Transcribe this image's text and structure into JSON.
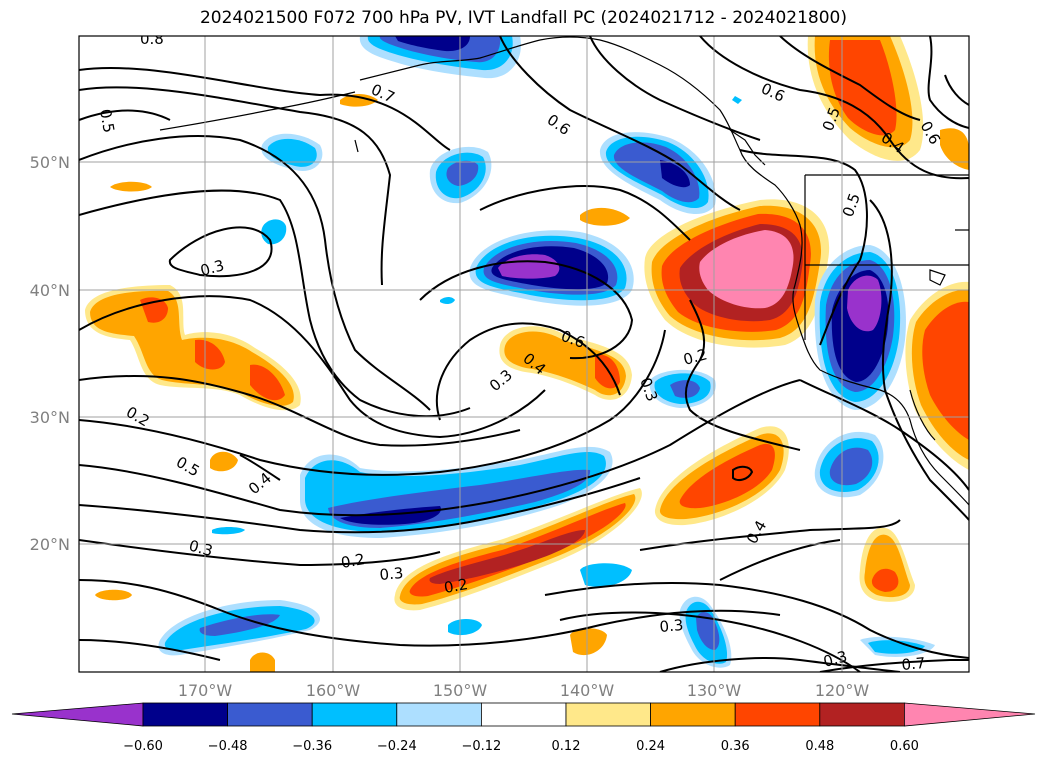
{
  "title": "2024021500 F072 700 hPa PV, IVT Landfall PC (2024021712 - 2024021800)",
  "map": {
    "lat_ticks": [
      "50°N",
      "40°N",
      "30°N",
      "20°N"
    ],
    "lon_ticks": [
      "170°W",
      "160°W",
      "150°W",
      "140°W",
      "130°W",
      "120°W"
    ],
    "contour_labels": [
      "0.8",
      "0.7",
      "0.5",
      "0.6",
      "0.3",
      "0.6",
      "0.4",
      "0.3",
      "0.2",
      "0.3",
      "0.2",
      "0.5",
      "0.4",
      "0.3",
      "0.2",
      "0.3",
      "0.2",
      "0.3",
      "0.4",
      "0.3",
      "0.7",
      "0.6",
      "0.5",
      "0.4",
      "0.6",
      "0.5"
    ]
  },
  "colorbar": {
    "ticks": [
      "−0.60",
      "−0.48",
      "−0.36",
      "−0.24",
      "−0.12",
      "0.12",
      "0.24",
      "0.36",
      "0.48",
      "0.60"
    ],
    "colors": [
      "#9932CC",
      "#00008B",
      "#3A5BD0",
      "#00BFFF",
      "#ADDFFF",
      "#FFFFFF",
      "#FFE88A",
      "#FFA500",
      "#FF4500",
      "#B22222",
      "#FF85B0"
    ]
  }
}
